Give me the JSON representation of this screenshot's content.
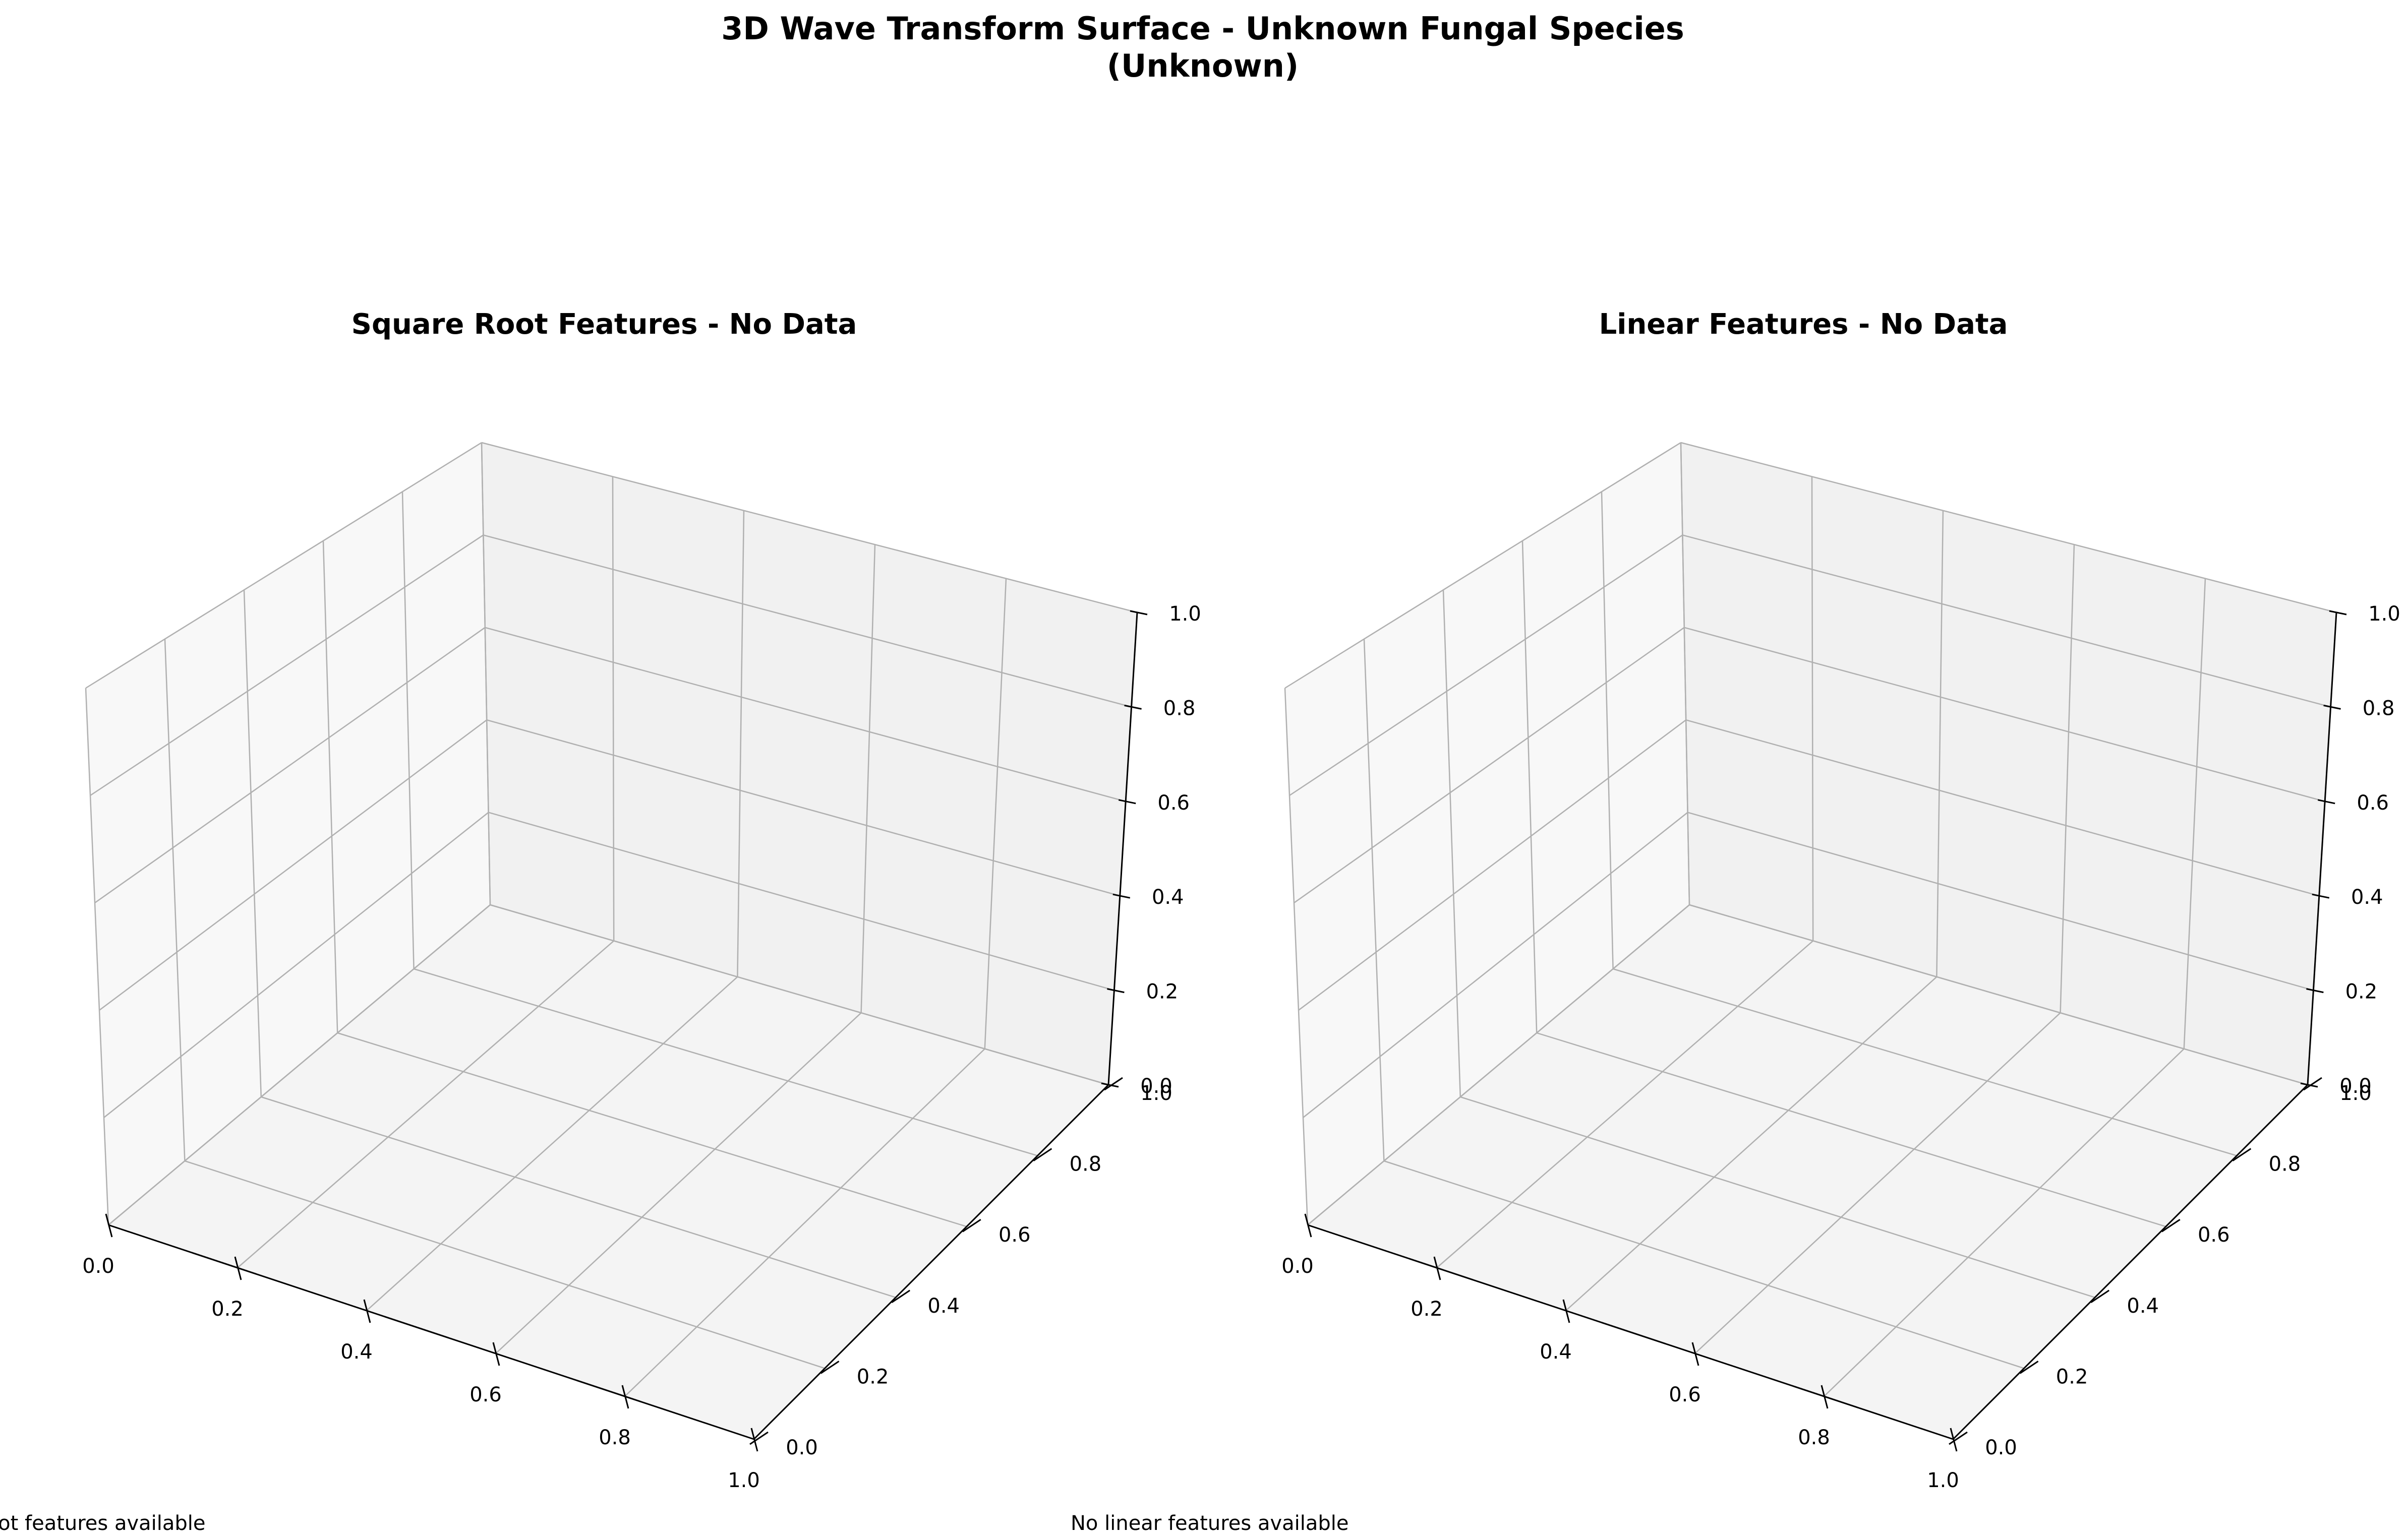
{
  "figure": {
    "title_line1": "3D Wave Transform Surface - Unknown Fungal Species",
    "title_line2": "(Unknown)"
  },
  "chart_data": [
    {
      "type": "surface3d",
      "title": "Square Root Features - No Data",
      "annotation": "No square root features available",
      "xlim": [
        0,
        1
      ],
      "ylim": [
        0,
        1
      ],
      "zlim": [
        0,
        1
      ],
      "x_ticks": [
        "0.0",
        "0.2",
        "0.4",
        "0.6",
        "0.8",
        "1.0"
      ],
      "y_ticks": [
        "0.0",
        "0.2",
        "0.4",
        "0.6",
        "0.8",
        "1.0"
      ],
      "z_ticks": [
        "0.0",
        "0.2",
        "0.4",
        "0.6",
        "0.8",
        "1.0"
      ],
      "grid": true,
      "series": []
    },
    {
      "type": "surface3d",
      "title": "Linear Features - No Data",
      "annotation": "No linear features available",
      "xlim": [
        0,
        1
      ],
      "ylim": [
        0,
        1
      ],
      "zlim": [
        0,
        1
      ],
      "x_ticks": [
        "0.0",
        "0.2",
        "0.4",
        "0.6",
        "0.8",
        "1.0"
      ],
      "y_ticks": [
        "0.0",
        "0.2",
        "0.4",
        "0.6",
        "0.8",
        "1.0"
      ],
      "z_ticks": [
        "0.0",
        "0.2",
        "0.4",
        "0.6",
        "0.8",
        "1.0"
      ],
      "grid": true,
      "series": []
    }
  ],
  "colors": {
    "pane_floor": "#f4f4f4",
    "pane_left": "#f8f8f8",
    "pane_back": "#f1f1f1",
    "grid": "#b0b0b0",
    "axis": "#000000",
    "text": "#000000"
  }
}
